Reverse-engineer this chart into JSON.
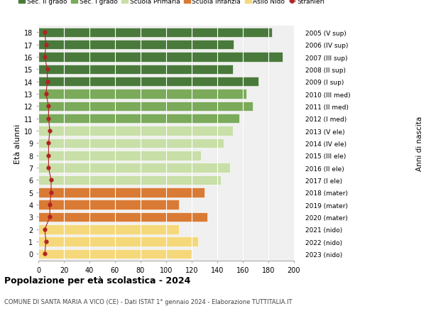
{
  "ages": [
    18,
    17,
    16,
    15,
    14,
    13,
    12,
    11,
    10,
    9,
    8,
    7,
    6,
    5,
    4,
    3,
    2,
    1,
    0
  ],
  "right_labels": [
    "2005 (V sup)",
    "2006 (IV sup)",
    "2007 (III sup)",
    "2008 (II sup)",
    "2009 (I sup)",
    "2010 (III med)",
    "2011 (II med)",
    "2012 (I med)",
    "2013 (V ele)",
    "2014 (IV ele)",
    "2015 (III ele)",
    "2016 (II ele)",
    "2017 (I ele)",
    "2018 (mater)",
    "2019 (mater)",
    "2020 (mater)",
    "2021 (nido)",
    "2022 (nido)",
    "2023 (nido)"
  ],
  "bar_values": [
    183,
    153,
    191,
    152,
    172,
    163,
    168,
    157,
    152,
    145,
    127,
    150,
    143,
    130,
    110,
    132,
    110,
    125,
    120
  ],
  "stranieri_values": [
    5,
    6,
    5,
    7,
    7,
    6,
    8,
    8,
    9,
    8,
    8,
    8,
    10,
    10,
    9,
    9,
    5,
    6,
    5
  ],
  "bar_colors": [
    "#4a7a3b",
    "#4a7a3b",
    "#4a7a3b",
    "#4a7a3b",
    "#4a7a3b",
    "#7aaa5a",
    "#7aaa5a",
    "#7aaa5a",
    "#c8dfa8",
    "#c8dfa8",
    "#c8dfa8",
    "#c8dfa8",
    "#c8dfa8",
    "#d97b35",
    "#d97b35",
    "#d97b35",
    "#f5d87a",
    "#f5d87a",
    "#f5d87a"
  ],
  "legend_labels": [
    "Sec. II grado",
    "Sec. I grado",
    "Scuola Primaria",
    "Scuola Infanzia",
    "Asilo Nido",
    "Stranieri"
  ],
  "legend_colors": [
    "#4a7a3b",
    "#7aaa5a",
    "#c8dfa8",
    "#d97b35",
    "#f5d87a",
    "#b22222"
  ],
  "stranieri_color": "#b22222",
  "title": "Popolazione per età scolastica - 2024",
  "subtitle": "COMUNE DI SANTA MARIA A VICO (CE) - Dati ISTAT 1° gennaio 2024 - Elaborazione TUTTITALIA.IT",
  "ylabel": "Età alunni",
  "right_ylabel": "Anni di nascita",
  "xlim": [
    0,
    200
  ],
  "xticks": [
    0,
    20,
    40,
    60,
    80,
    100,
    120,
    140,
    160,
    180,
    200
  ],
  "bar_height": 0.78,
  "background_color": "#ffffff",
  "plot_bg_color": "#f0f0f0"
}
